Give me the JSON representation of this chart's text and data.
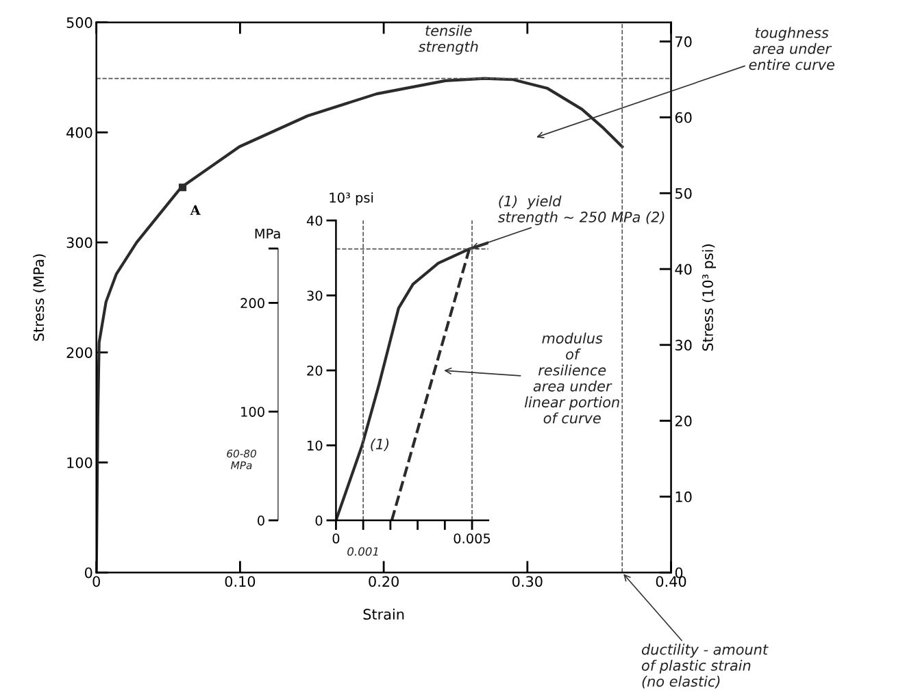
{
  "chart_data": [
    {
      "type": "line",
      "xlabel": "Strain",
      "ylabel": "Stress (MPa)",
      "y2label": "Stress (10³ psi)",
      "series": [
        {
          "color": "#2b2b2b",
          "line_style": "solid",
          "x": [
            0,
            0.001,
            0.0019,
            0.0067,
            0.0138,
            0.028,
            0.059,
            0.0996,
            0.147,
            0.195,
            0.243,
            0.27,
            0.29,
            0.314,
            0.338,
            0.352,
            0.366
          ],
          "values": [
            0,
            140,
            209,
            246,
            271,
            300,
            350,
            387,
            415,
            435,
            447,
            449,
            448,
            440,
            421,
            405,
            387
          ]
        },
        {
          "type": "scatter",
          "marker": "square",
          "color": "#2b2b2b",
          "x": [
            0.06
          ],
          "values": [
            350
          ]
        }
      ],
      "xlim": [
        0,
        0.4
      ],
      "ylim": [
        0,
        500
      ],
      "xticks": [
        0,
        {
          "value": 0.1,
          "label": "0.10"
        },
        {
          "value": 0.2,
          "label": "0.20"
        },
        {
          "value": 0.3,
          "label": "0.30"
        },
        {
          "value": 0.4,
          "label": "0.40"
        }
      ],
      "yticks": [
        0,
        100,
        200,
        300,
        400,
        500
      ],
      "y2lim": [
        0,
        72.52
      ],
      "y2ticks": [
        0,
        10,
        20,
        30,
        40,
        50,
        60,
        70
      ],
      "grid": false,
      "ref_lines": [
        {
          "axis": "y",
          "value": 449,
          "line_style": "dashed",
          "color": "#555555"
        },
        {
          "axis": "x",
          "value": 0.366,
          "line_style": "dashed",
          "color": "#555555"
        }
      ],
      "annotations": [
        {
          "text": "tensile\nstrength",
          "x": 0.265,
          "y": 449
        },
        "toughness\narea under\nentire curve",
        {
          "text": "ductility - amount\nof plastic strain\n(no elastic)",
          "x": 0.366,
          "y": 0
        },
        {
          "text": "A",
          "x": 0.06,
          "y": 350
        }
      ]
    },
    {
      "type": "line",
      "ylabel": "10³ psi",
      "y2label": "MPa",
      "series": [
        {
          "color": "#2b2b2b",
          "line_style": "solid",
          "x": [
            0,
            0.00096,
            0.00158,
            0.0023,
            0.00283,
            0.00376,
            0.0049,
            0.00557
          ],
          "values": [
            0,
            10,
            18.1,
            28.3,
            31.5,
            34.3,
            36.2,
            37
          ]
        },
        {
          "color": "#2b2b2b",
          "line_style": "dashed",
          "x": [
            0.00205,
            0.0049
          ],
          "values": [
            0,
            36.2
          ]
        }
      ],
      "xlim": [
        0,
        0.0056
      ],
      "ylim": [
        0,
        40
      ],
      "xticks": [
        0,
        {
          "value": 0.001,
          "label": null
        },
        {
          "value": 0.002,
          "label": null
        },
        {
          "value": 0.003,
          "label": null
        },
        {
          "value": 0.004,
          "label": null
        },
        0.005
      ],
      "yticks": [
        0,
        10,
        20,
        30,
        40
      ],
      "y2lim": [
        0,
        275.8
      ],
      "y2ticks": [
        0,
        100,
        200,
        {
          "value": 250,
          "label": null
        }
      ],
      "grid": false,
      "ref_lines": [
        {
          "axis": "x",
          "value": 0.001,
          "line_style": "dashed",
          "color": "#555555"
        },
        {
          "axis": "x",
          "value": 0.005,
          "line_style": "dashed",
          "color": "#555555"
        },
        {
          "axis": "y",
          "value": 36.2,
          "line_style": "dashed",
          "color": "#555555"
        }
      ],
      "annotations": [
        {
          "text": "(1)  yield\nstrength ~ 250 MPa (2)",
          "x": 0.0049,
          "y": 36.2
        },
        {
          "text": "(1)",
          "x": 0.00096,
          "y": 10
        },
        {
          "text": "0.001",
          "x": 0.001,
          "y": 0
        },
        "60-80\nMPa",
        "modulus\nof\nresilience\narea under\nlinear portion\nof curve"
      ]
    }
  ]
}
